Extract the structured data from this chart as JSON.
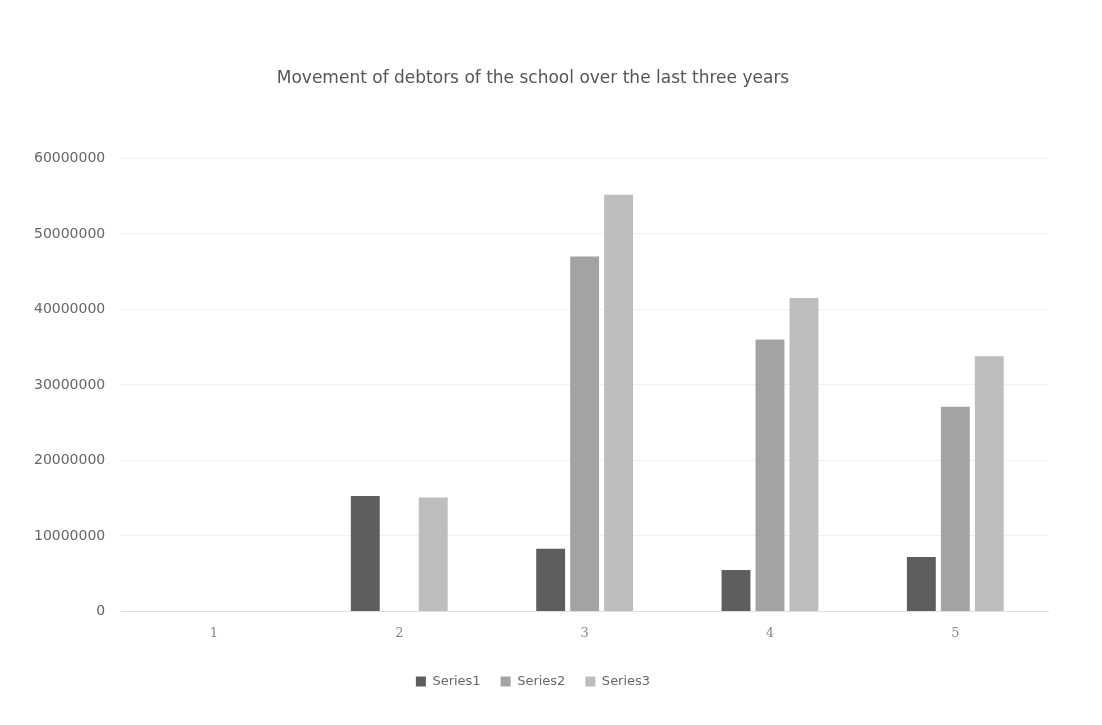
{
  "chart_data": {
    "type": "bar",
    "title": "Movement of debtors of the school over the last three years",
    "categories": [
      "1",
      "2",
      "3",
      "4",
      "5"
    ],
    "series": [
      {
        "name": "Series1",
        "color": "#5e5e5e",
        "values": [
          null,
          15300000,
          8300000,
          5500000,
          7200000
        ]
      },
      {
        "name": "Series2",
        "color": "#a3a3a3",
        "values": [
          null,
          null,
          47000000,
          36000000,
          27100000
        ]
      },
      {
        "name": "Series3",
        "color": "#bdbdbd",
        "values": [
          null,
          15100000,
          55200000,
          41500000,
          33800000
        ]
      }
    ],
    "ylim": [
      0,
      60000000
    ],
    "yticks": [
      0,
      10000000,
      20000000,
      30000000,
      40000000,
      50000000,
      60000000
    ],
    "grid": "y",
    "legend": "bottom"
  }
}
